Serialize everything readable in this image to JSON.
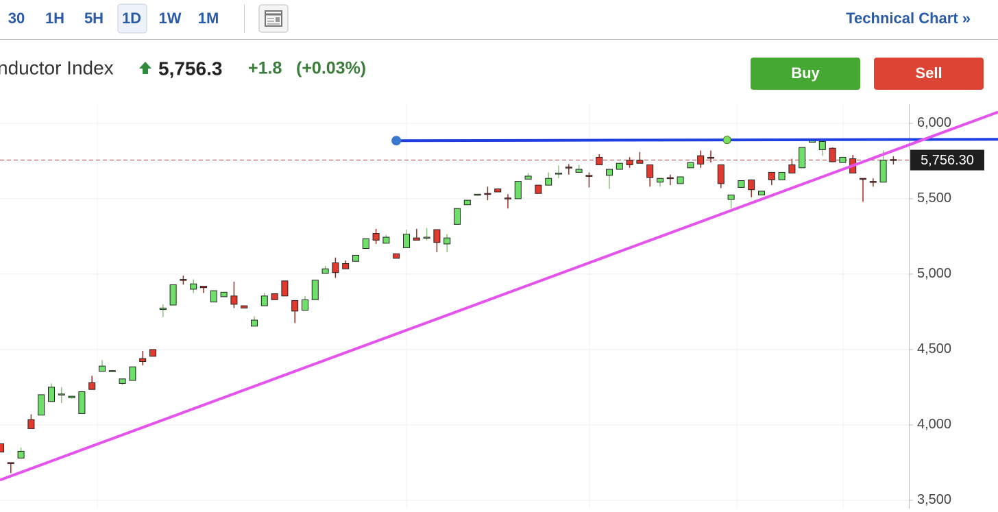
{
  "toolbar": {
    "intervals": [
      "30",
      "1H",
      "5H",
      "1D",
      "1W",
      "1M"
    ],
    "selected": 3,
    "link": "Technical Chart »"
  },
  "header": {
    "name": "nductor Index",
    "price": "5,756.3",
    "change": "+1.8",
    "change_pct": "(+0.03%)"
  },
  "buttons": {
    "buy": "Buy",
    "sell": "Sell"
  },
  "chart_data": {
    "type": "candlestick",
    "up_color": "#6ee06a",
    "down_color": "#e2392e",
    "ylim": [
      3445,
      6127
    ],
    "yticks": [
      {
        "value": 3500,
        "label": "3,500"
      },
      {
        "value": 4000,
        "label": "4,000"
      },
      {
        "value": 4500,
        "label": "4,500"
      },
      {
        "value": 5000,
        "label": "5,000"
      },
      {
        "value": 5500,
        "label": "5,500"
      },
      {
        "value": 6000,
        "label": "6,000"
      }
    ],
    "grid": true,
    "last_price": {
      "value": 5756.3,
      "label": "5,756.30"
    },
    "open": [
      3875,
      3750,
      3780,
      4035,
      4065,
      4155,
      4200,
      4180,
      4075,
      4280,
      4355,
      4355,
      4275,
      4295,
      4440,
      4500,
      4765,
      4795,
      4965,
      4900,
      4920,
      4815,
      4850,
      4855,
      4790,
      4655,
      4790,
      4870,
      4955,
      4825,
      4760,
      4830,
      5005,
      5075,
      5070,
      5085,
      5170,
      5270,
      5205,
      5135,
      5175,
      5240,
      5240,
      5295,
      5200,
      5330,
      5460,
      5525,
      5535,
      5565,
      5505,
      5500,
      5630,
      5590,
      5590,
      5665,
      5710,
      5675,
      5655,
      5775,
      5655,
      5695,
      5755,
      5755,
      5725,
      5610,
      5640,
      5600,
      5705,
      5785,
      5775,
      5725,
      5495,
      5575,
      5625,
      5525,
      5675,
      5625,
      5725,
      5705,
      5875,
      5825,
      5835,
      5740,
      5765,
      5635,
      5615,
      5610,
      5760
    ],
    "high": [
      3875,
      3750,
      3850,
      4070,
      4200,
      4275,
      4250,
      4190,
      4220,
      4325,
      4430,
      4365,
      4305,
      4385,
      4490,
      4500,
      4800,
      4930,
      4990,
      4965,
      4920,
      4890,
      4880,
      4950,
      4790,
      4720,
      4875,
      4870,
      4955,
      4825,
      4855,
      4960,
      5055,
      5110,
      5090,
      5125,
      5235,
      5300,
      5260,
      5135,
      5295,
      5300,
      5305,
      5295,
      5265,
      5435,
      5490,
      5530,
      5580,
      5565,
      5530,
      5615,
      5670,
      5590,
      5675,
      5720,
      5730,
      5725,
      5675,
      5795,
      5695,
      5735,
      5775,
      5810,
      5725,
      5635,
      5660,
      5645,
      5740,
      5820,
      5820,
      5725,
      5525,
      5620,
      5625,
      5550,
      5675,
      5675,
      5765,
      5840,
      5895,
      5880,
      5840,
      5775,
      5790,
      5635,
      5635,
      5820,
      5782
    ],
    "low": [
      3820,
      3680,
      3780,
      3975,
      4065,
      4155,
      4145,
      4175,
      4075,
      4235,
      4355,
      4350,
      4265,
      4295,
      4395,
      4455,
      4715,
      4795,
      4930,
      4875,
      4875,
      4815,
      4850,
      4775,
      4775,
      4655,
      4790,
      4830,
      4855,
      4675,
      4760,
      4830,
      5005,
      4975,
      5035,
      5085,
      5170,
      5200,
      5205,
      5105,
      5175,
      5225,
      5225,
      5145,
      5145,
      5330,
      5460,
      5520,
      5490,
      5545,
      5435,
      5500,
      5630,
      5535,
      5590,
      5635,
      5660,
      5675,
      5575,
      5725,
      5565,
      5695,
      5705,
      5735,
      5580,
      5580,
      5590,
      5600,
      5705,
      5705,
      5740,
      5570,
      5435,
      5575,
      5510,
      5525,
      5590,
      5625,
      5670,
      5705,
      5875,
      5785,
      5745,
      5740,
      5670,
      5480,
      5580,
      5610,
      5727
    ],
    "close": [
      3820,
      3745,
      3825,
      3975,
      4200,
      4250,
      4205,
      4190,
      4220,
      4235,
      4390,
      4360,
      4305,
      4385,
      4420,
      4455,
      4775,
      4930,
      4960,
      4935,
      4910,
      4890,
      4880,
      4800,
      4775,
      4695,
      4855,
      4830,
      4855,
      4755,
      4830,
      4960,
      5035,
      5010,
      5035,
      5125,
      5235,
      5225,
      5245,
      5105,
      5265,
      5225,
      5245,
      5210,
      5240,
      5435,
      5490,
      5530,
      5530,
      5545,
      5500,
      5615,
      5650,
      5535,
      5635,
      5670,
      5705,
      5695,
      5650,
      5725,
      5695,
      5735,
      5725,
      5735,
      5640,
      5635,
      5635,
      5645,
      5740,
      5730,
      5770,
      5600,
      5525,
      5620,
      5560,
      5550,
      5625,
      5675,
      5670,
      5840,
      5885,
      5880,
      5745,
      5775,
      5670,
      5630,
      5610,
      5755,
      5756.3
    ],
    "trend_lines": [
      {
        "color": "#1f3fe0",
        "points": [
          [
            39,
            5885
          ],
          [
            71.6,
            5890
          ]
        ],
        "handle_colors": [
          "#3a78d0",
          "#7ee05a"
        ],
        "extend": "right"
      },
      {
        "color": "#e454ec",
        "points": [
          [
            0,
            3636
          ],
          [
            98.4,
            6077
          ]
        ],
        "extend": "both"
      }
    ]
  }
}
